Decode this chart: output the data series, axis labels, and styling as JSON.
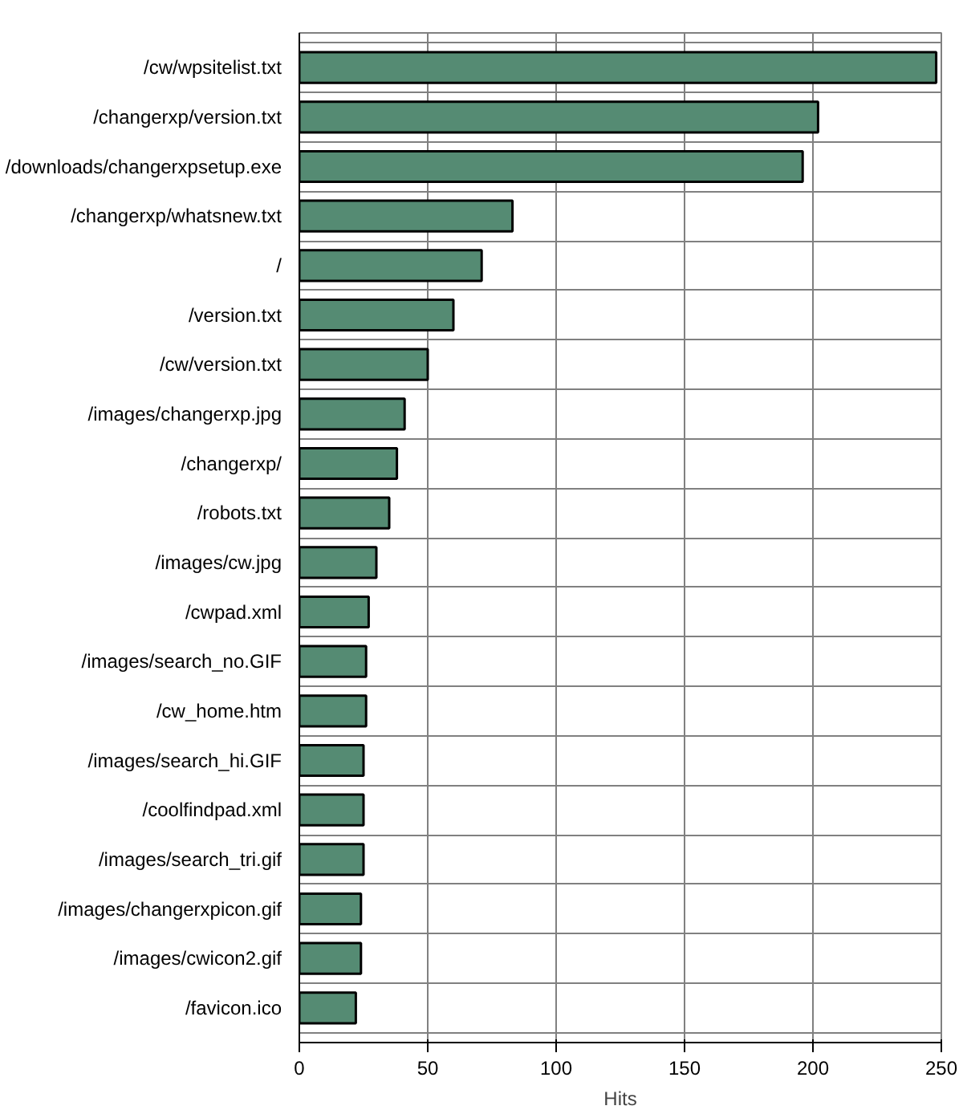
{
  "chart_data": {
    "type": "bar",
    "orientation": "horizontal",
    "xlabel": "Hits",
    "categories": [
      "/cw/wpsitelist.txt",
      "/changerxp/version.txt",
      "/downloads/changerxpsetup.exe",
      "/changerxp/whatsnew.txt",
      "/",
      "/version.txt",
      "/cw/version.txt",
      "/images/changerxp.jpg",
      "/changerxp/",
      "/robots.txt",
      "/images/cw.jpg",
      "/cwpad.xml",
      "/images/search_no.GIF",
      "/cw_home.htm",
      "/images/search_hi.GIF",
      "/coolfindpad.xml",
      "/images/search_tri.gif",
      "/images/changerxpicon.gif",
      "/images/cwicon2.gif",
      "/favicon.ico"
    ],
    "values": [
      248,
      202,
      196,
      83,
      71,
      60,
      50,
      41,
      38,
      35,
      30,
      27,
      26,
      26,
      25,
      25,
      25,
      24,
      24,
      22
    ],
    "color": "#558b73",
    "xlim": [
      0,
      250
    ],
    "xticks": [
      0,
      50,
      100,
      150,
      200,
      250
    ],
    "grid": true
  }
}
